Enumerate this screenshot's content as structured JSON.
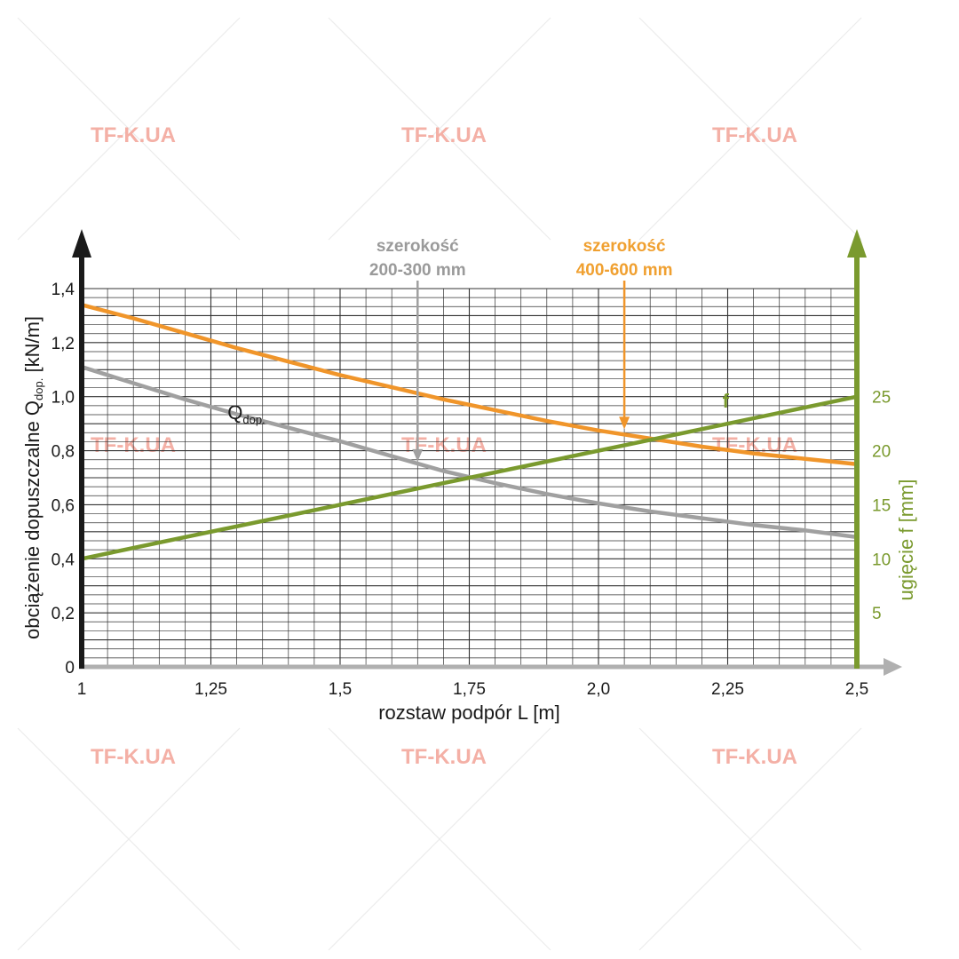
{
  "watermark": "TF-K.UA",
  "colors": {
    "left_axis": "#1a1a1a",
    "right_axis": "#7a9a2e",
    "bottom_axis": "#b0b0b0",
    "grid": "#333333",
    "series_gray": "#a0a0a0",
    "series_orange": "#f0952a",
    "series_green": "#7a9a2e"
  },
  "chart_data": {
    "type": "line",
    "title": "",
    "xlabel": "rozstaw podpór L [m]",
    "ylabel": {
      "main": "obciążenie dopuszczalne Q",
      "sub": "dop.",
      "unit": " [kN/m]"
    },
    "y2label": "ugięcie f [mm]",
    "xlim": [
      1,
      2.5
    ],
    "ylim": [
      0,
      1.4
    ],
    "y2lim": [
      0,
      35
    ],
    "grid": true,
    "x_ticks": [
      {
        "value": 1,
        "label": "1"
      },
      {
        "value": 1.25,
        "label": "1,25"
      },
      {
        "value": 1.5,
        "label": "1,5"
      },
      {
        "value": 1.75,
        "label": "1,75"
      },
      {
        "value": 2.0,
        "label": "2,0"
      },
      {
        "value": 2.25,
        "label": "2,25"
      },
      {
        "value": 2.5,
        "label": "2,5"
      }
    ],
    "y_ticks": [
      {
        "value": 0,
        "label": "0"
      },
      {
        "value": 0.2,
        "label": "0,2"
      },
      {
        "value": 0.4,
        "label": "0,4"
      },
      {
        "value": 0.6,
        "label": "0,6"
      },
      {
        "value": 0.8,
        "label": "0,8"
      },
      {
        "value": 1.0,
        "label": "1,0"
      },
      {
        "value": 1.2,
        "label": "1,2"
      },
      {
        "value": 1.4,
        "label": "1,4"
      }
    ],
    "y2_ticks": [
      {
        "value": 5,
        "label": "5"
      },
      {
        "value": 10,
        "label": "10"
      },
      {
        "value": 15,
        "label": "15"
      },
      {
        "value": 20,
        "label": "20"
      },
      {
        "value": 25,
        "label": "25"
      }
    ],
    "series": [
      {
        "key": "gray",
        "name": "",
        "axis": "left",
        "x": [
          1.0,
          1.1,
          1.2,
          1.3,
          1.4,
          1.5,
          1.6,
          1.7,
          1.8,
          1.9,
          2.0,
          2.1,
          2.2,
          2.3,
          2.4,
          2.5
        ],
        "y": [
          1.11,
          1.05,
          0.99,
          0.935,
          0.885,
          0.835,
          0.78,
          0.725,
          0.68,
          0.64,
          0.605,
          0.575,
          0.55,
          0.525,
          0.505,
          0.48
        ]
      },
      {
        "key": "orange",
        "name": "",
        "axis": "left",
        "x": [
          1.0,
          1.1,
          1.2,
          1.3,
          1.4,
          1.5,
          1.6,
          1.7,
          1.8,
          1.9,
          2.0,
          2.1,
          2.2,
          2.3,
          2.4,
          2.5
        ],
        "y": [
          1.34,
          1.29,
          1.235,
          1.18,
          1.13,
          1.08,
          1.035,
          0.99,
          0.95,
          0.91,
          0.875,
          0.845,
          0.815,
          0.79,
          0.77,
          0.75
        ]
      },
      {
        "key": "green",
        "name": "f",
        "axis": "right",
        "x": [
          1.0,
          2.5
        ],
        "y": [
          10,
          25
        ]
      }
    ],
    "annotations": [
      {
        "key": "gray",
        "lines": [
          "szerokość",
          "200-300 mm"
        ],
        "x": 1.65,
        "y": 0.74
      },
      {
        "key": "orange",
        "lines": [
          "szerokość",
          "400-600 mm"
        ],
        "x": 2.05,
        "y": 0.86
      }
    ],
    "series_labels": [
      {
        "key": "q",
        "text": "Q",
        "sub": "dop.",
        "x": 1.32,
        "y": 0.93
      },
      {
        "key": "f",
        "text": "f",
        "x": 2.24,
        "y": 0.97
      }
    ]
  }
}
